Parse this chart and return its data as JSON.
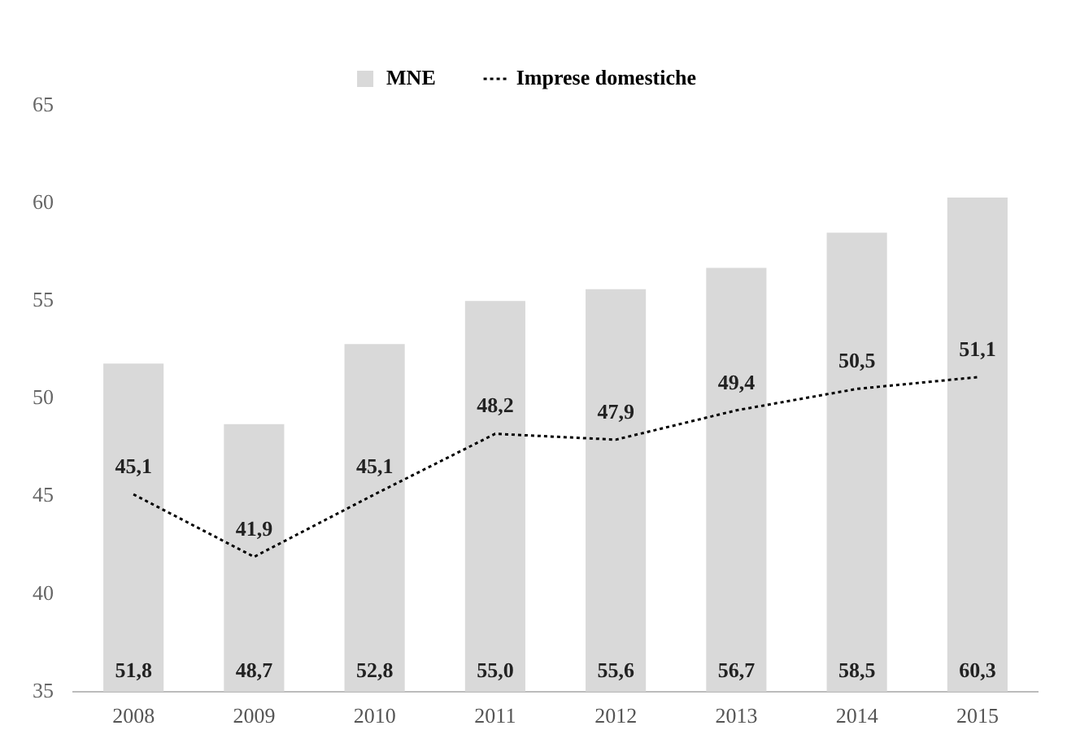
{
  "chart_data": {
    "type": "bar",
    "categories": [
      "2008",
      "2009",
      "2010",
      "2011",
      "2012",
      "2013",
      "2014",
      "2015"
    ],
    "series": [
      {
        "name": "MNE",
        "color": "#d9d9d9",
        "values": [
          51.8,
          48.7,
          52.8,
          55.0,
          55.6,
          56.7,
          58.5,
          60.3
        ],
        "value_labels": [
          "51,8",
          "48,7",
          "52,8",
          "55,0",
          "55,6",
          "56,7",
          "58,5",
          "60,3"
        ]
      },
      {
        "name": "Imprese domestiche",
        "type": "line",
        "color": "#000000",
        "line_style": "dotted",
        "marker": "none",
        "values": [
          45.1,
          41.9,
          45.1,
          48.2,
          47.9,
          49.4,
          50.5,
          51.1
        ],
        "value_labels": [
          "45,1",
          "41,9",
          "45,1",
          "48,2",
          "47,9",
          "49,4",
          "50,5",
          "51,1"
        ]
      }
    ],
    "ylim": [
      35,
      65
    ],
    "yticks": [
      35,
      40,
      45,
      50,
      55,
      60,
      65
    ],
    "grid": false,
    "legend": "top"
  }
}
